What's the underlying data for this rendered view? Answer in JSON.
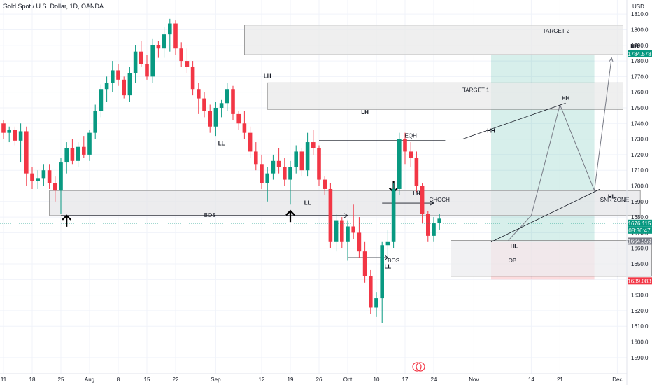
{
  "chart_data": {
    "type": "candlestick",
    "title": "Gold Spot / U.S. Dollar, 1D, OANDA",
    "currency": "USD",
    "ylim": [
      1585,
      1815
    ],
    "y_ticks": [
      1590,
      1600,
      1610,
      1620,
      1630,
      1640,
      1650,
      1660,
      1670,
      1680,
      1690,
      1700,
      1710,
      1720,
      1730,
      1740,
      1750,
      1760,
      1770,
      1780,
      1790,
      1800,
      1810
    ],
    "x_ticks": [
      {
        "label": "11",
        "i": 0
      },
      {
        "label": "18",
        "i": 5
      },
      {
        "label": "25",
        "i": 10
      },
      {
        "label": "Aug",
        "i": 15
      },
      {
        "label": "8",
        "i": 20
      },
      {
        "label": "15",
        "i": 25
      },
      {
        "label": "22",
        "i": 30
      },
      {
        "label": "Sep",
        "i": 37
      },
      {
        "label": "12",
        "i": 45
      },
      {
        "label": "19",
        "i": 50
      },
      {
        "label": "26",
        "i": 55
      },
      {
        "label": "Oct",
        "i": 60
      },
      {
        "label": "10",
        "i": 65
      },
      {
        "label": "17",
        "i": 70
      },
      {
        "label": "24",
        "i": 75
      },
      {
        "label": "Nov",
        "i": 82
      },
      {
        "label": "14",
        "i": 92
      },
      {
        "label": "21",
        "i": 97
      },
      {
        "label": "Dec",
        "i": 107
      }
    ],
    "candles": [
      [
        1740,
        1742,
        1730,
        1734
      ],
      [
        1734,
        1738,
        1728,
        1736
      ],
      [
        1736,
        1738,
        1726,
        1729
      ],
      [
        1729,
        1740,
        1715,
        1735
      ],
      [
        1735,
        1738,
        1700,
        1708
      ],
      [
        1708,
        1712,
        1698,
        1703
      ],
      [
        1703,
        1710,
        1698,
        1705
      ],
      [
        1705,
        1714,
        1700,
        1710
      ],
      [
        1710,
        1714,
        1698,
        1702
      ],
      [
        1702,
        1706,
        1690,
        1697
      ],
      [
        1697,
        1718,
        1682,
        1715
      ],
      [
        1715,
        1728,
        1708,
        1724
      ],
      [
        1724,
        1730,
        1714,
        1716
      ],
      [
        1716,
        1728,
        1712,
        1725
      ],
      [
        1725,
        1732,
        1718,
        1720
      ],
      [
        1720,
        1736,
        1716,
        1734
      ],
      [
        1734,
        1752,
        1730,
        1748
      ],
      [
        1748,
        1765,
        1744,
        1762
      ],
      [
        1762,
        1770,
        1754,
        1766
      ],
      [
        1766,
        1780,
        1760,
        1774
      ],
      [
        1774,
        1778,
        1764,
        1768
      ],
      [
        1768,
        1770,
        1756,
        1758
      ],
      [
        1758,
        1776,
        1754,
        1772
      ],
      [
        1772,
        1790,
        1766,
        1786
      ],
      [
        1786,
        1793,
        1776,
        1778
      ],
      [
        1778,
        1784,
        1768,
        1770
      ],
      [
        1770,
        1794,
        1766,
        1790
      ],
      [
        1790,
        1793,
        1782,
        1788
      ],
      [
        1788,
        1802,
        1782,
        1797
      ],
      [
        1797,
        1807,
        1786,
        1804
      ],
      [
        1804,
        1806,
        1784,
        1788
      ],
      [
        1788,
        1792,
        1776,
        1780
      ],
      [
        1780,
        1788,
        1772,
        1776
      ],
      [
        1776,
        1780,
        1758,
        1762
      ],
      [
        1762,
        1766,
        1746,
        1756
      ],
      [
        1756,
        1760,
        1744,
        1748
      ],
      [
        1748,
        1752,
        1734,
        1738
      ],
      [
        1738,
        1754,
        1732,
        1750
      ],
      [
        1750,
        1755,
        1744,
        1753
      ],
      [
        1753,
        1766,
        1748,
        1762
      ],
      [
        1762,
        1764,
        1742,
        1746
      ],
      [
        1746,
        1748,
        1736,
        1740
      ],
      [
        1740,
        1748,
        1730,
        1734
      ],
      [
        1734,
        1738,
        1718,
        1722
      ],
      [
        1722,
        1728,
        1710,
        1714
      ],
      [
        1714,
        1720,
        1698,
        1702
      ],
      [
        1702,
        1712,
        1690,
        1708
      ],
      [
        1708,
        1720,
        1704,
        1716
      ],
      [
        1716,
        1724,
        1708,
        1712
      ],
      [
        1712,
        1718,
        1700,
        1704
      ],
      [
        1704,
        1716,
        1688,
        1712
      ],
      [
        1712,
        1726,
        1708,
        1722
      ],
      [
        1722,
        1724,
        1706,
        1710
      ],
      [
        1710,
        1734,
        1706,
        1728
      ],
      [
        1728,
        1736,
        1720,
        1724
      ],
      [
        1724,
        1726,
        1700,
        1704
      ],
      [
        1704,
        1706,
        1694,
        1698
      ],
      [
        1698,
        1702,
        1660,
        1664
      ],
      [
        1664,
        1682,
        1658,
        1678
      ],
      [
        1678,
        1680,
        1660,
        1664
      ],
      [
        1664,
        1678,
        1652,
        1674
      ],
      [
        1674,
        1688,
        1666,
        1670
      ],
      [
        1670,
        1680,
        1654,
        1658
      ],
      [
        1658,
        1664,
        1638,
        1642
      ],
      [
        1642,
        1646,
        1618,
        1622
      ],
      [
        1622,
        1632,
        1616,
        1628
      ],
      [
        1628,
        1664,
        1612,
        1662
      ],
      [
        1662,
        1672,
        1652,
        1664
      ],
      [
        1664,
        1702,
        1660,
        1698
      ],
      [
        1698,
        1734,
        1694,
        1730
      ],
      [
        1730,
        1734,
        1714,
        1722
      ],
      [
        1722,
        1728,
        1712,
        1718
      ],
      [
        1718,
        1722,
        1696,
        1700
      ],
      [
        1700,
        1702,
        1676,
        1682
      ],
      [
        1682,
        1684,
        1664,
        1668
      ],
      [
        1668,
        1680,
        1664,
        1676
      ],
      [
        1676,
        1682,
        1672,
        1679
      ]
    ],
    "zones": [
      {
        "name": "target-2-zone",
        "label": "TARGET 2",
        "x0": 42,
        "x1": 108,
        "y0": 1784,
        "y1": 1803
      },
      {
        "name": "target-1-zone",
        "label": "TARGET 1",
        "x0": 46,
        "x1": 108,
        "y0": 1749,
        "y1": 1766
      },
      {
        "name": "snr-zone",
        "label": "SNR ZONE",
        "x0": 8,
        "x1": 111,
        "y0": 1681,
        "y1": 1697
      },
      {
        "name": "ob-zone",
        "label": "OB",
        "x0": 78,
        "x1": 113,
        "y0": 1642,
        "y1": 1665
      }
    ],
    "labels": [
      {
        "text": "LH",
        "i": 46,
        "y": 1769
      },
      {
        "text": "LL",
        "i": 38,
        "y": 1726
      },
      {
        "text": "LH",
        "i": 63,
        "y": 1746
      },
      {
        "text": "LL",
        "i": 53,
        "y": 1688
      },
      {
        "text": "LH",
        "i": 72,
        "y": 1694
      },
      {
        "text": "LL",
        "i": 67,
        "y": 1647
      },
      {
        "text": "HH",
        "i": 85,
        "y": 1734
      },
      {
        "text": "HL",
        "i": 89,
        "y": 1660
      },
      {
        "text": "HH",
        "i": 98,
        "y": 1755
      },
      {
        "text": "HL",
        "i": 106,
        "y": 1692
      },
      {
        "text": "HH",
        "i": 110,
        "y": 1788
      },
      {
        "text": "EQH",
        "i": 71,
        "y": 1731
      },
      {
        "text": "CHOCH",
        "i": 76,
        "y": 1690
      },
      {
        "text": "BOS",
        "i": 36,
        "y": 1680
      },
      {
        "text": "BOS",
        "i": 68,
        "y": 1651
      }
    ],
    "price_tags": [
      {
        "value": "1784.578",
        "color": "#089981"
      },
      {
        "value": "1676.115",
        "color": "#089981"
      },
      {
        "value": "08:36:47",
        "color": "#089981"
      },
      {
        "value": "1664.559",
        "color": "#787b86"
      },
      {
        "value": "1639.083",
        "color": "#f23645"
      }
    ],
    "colors": {
      "up": "#089981",
      "down": "#f23645"
    }
  }
}
